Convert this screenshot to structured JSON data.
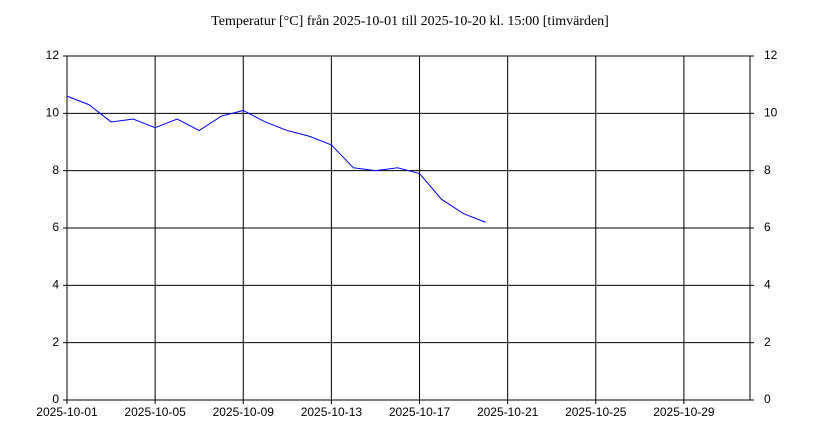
{
  "chart_data": {
    "type": "line",
    "title": "Temperatur [°C] från 2025-10-01 till 2025-10-20 kl. 15:00 [timvärden]",
    "x": [
      "2025-10-01",
      "2025-10-02",
      "2025-10-03",
      "2025-10-04",
      "2025-10-05",
      "2025-10-06",
      "2025-10-07",
      "2025-10-08",
      "2025-10-09",
      "2025-10-10",
      "2025-10-11",
      "2025-10-12",
      "2025-10-13",
      "2025-10-14",
      "2025-10-15",
      "2025-10-16",
      "2025-10-17",
      "2025-10-18",
      "2025-10-19",
      "2025-10-20"
    ],
    "series": [
      {
        "name": "Temperatur",
        "color": "#0000ff",
        "values": [
          10.6,
          10.3,
          9.7,
          9.8,
          9.5,
          9.8,
          9.4,
          9.9,
          10.1,
          9.7,
          9.4,
          9.2,
          8.9,
          8.1,
          8.0,
          8.1,
          7.9,
          7.0,
          6.5,
          6.2
        ]
      }
    ],
    "xlim": [
      "2025-10-01",
      "2025-11-01"
    ],
    "xticks": [
      "2025-10-01",
      "2025-10-05",
      "2025-10-09",
      "2025-10-13",
      "2025-10-17",
      "2025-10-21",
      "2025-10-25",
      "2025-10-29"
    ],
    "ylim": [
      0,
      12
    ],
    "yticks": [
      0,
      2,
      4,
      6,
      8,
      10,
      12
    ],
    "grid": true
  }
}
